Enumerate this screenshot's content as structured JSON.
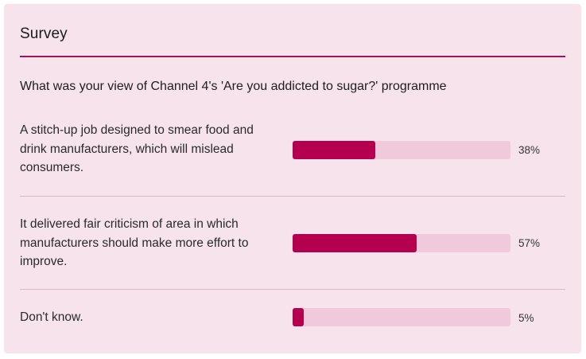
{
  "survey": {
    "title": "Survey",
    "question": "What was your view of Channel 4's 'Are you addicted to sugar?' programme",
    "accent_color": "#b50050",
    "track_color": "#f0cadb",
    "background_color": "#f7e3ec",
    "options": [
      {
        "label": "A stitch-up job designed to smear food and drink manufacturers, which will mislead consumers.",
        "percent_label": "38%",
        "fill_fraction": 0.38
      },
      {
        "label": "It delivered fair criticism of area in which manufacturers should make more effort to improve.",
        "percent_label": "57%",
        "fill_fraction": 0.57
      },
      {
        "label": "Don't know.",
        "percent_label": "5%",
        "fill_fraction": 0.05
      }
    ]
  }
}
